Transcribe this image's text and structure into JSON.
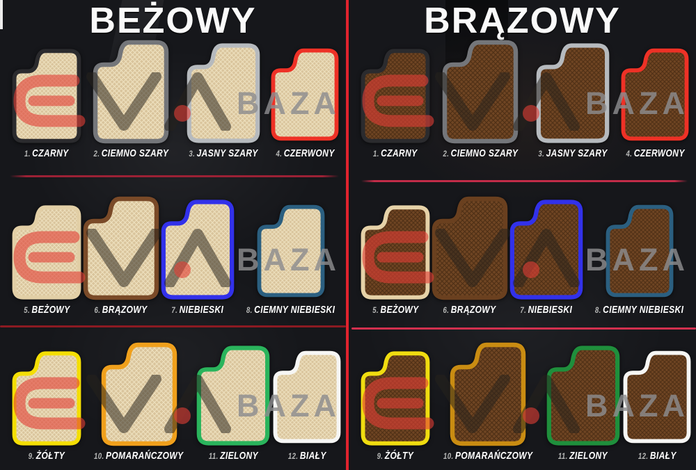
{
  "page": {
    "background": "#16171b",
    "edge_mark_color": "#ececec"
  },
  "dividers": {
    "vertical_color": "#e0232e",
    "left_horizontal_top_color": "#9c2135",
    "left_horizontal_bottom_color": "#8c1a22",
    "right_horizontal_top_color": "#c22c48",
    "right_horizontal_bottom_color": "#d2304e"
  },
  "watermark": {
    "logo_text": "EVA",
    "baza_text": "BAZA",
    "eva_red": "rgba(226,62,54,0.60)",
    "logo_dark": "rgba(38,34,28,0.52)",
    "baza_gray": "rgba(140,140,143,0.82)"
  },
  "panels": [
    {
      "id": "bezowy",
      "title": "BEŻOWY",
      "mat_fill": "#d9c49c",
      "mat_lattice": "#eee1bf",
      "items": [
        {
          "num": "1.",
          "label": "CZARNY",
          "border": "#2b2b2e"
        },
        {
          "num": "2.",
          "label": "CIEMNO SZARY",
          "border": "#74767a"
        },
        {
          "num": "3.",
          "label": "JASNY SZARY",
          "border": "#b6babe"
        },
        {
          "num": "4.",
          "label": "CZERWONY",
          "border": "#ee3126"
        },
        {
          "num": "5.",
          "label": "BEŻOWY",
          "border": "#e2cfa6"
        },
        {
          "num": "6.",
          "label": "BRĄZOWY",
          "border": "#7a4a28"
        },
        {
          "num": "7.",
          "label": "NIEBIESKI",
          "border": "#3231ea"
        },
        {
          "num": "8.",
          "label": "CIEMNY NIEBIESKI",
          "border": "#2b5f80"
        },
        {
          "num": "9.",
          "label": "ŻÓŁTY",
          "border": "#f4de04"
        },
        {
          "num": "10.",
          "label": "POMARAŃCZOWY",
          "border": "#f0a01c"
        },
        {
          "num": "11.",
          "label": "ZIELONY",
          "border": "#2ab45c"
        },
        {
          "num": "12.",
          "label": "BIAŁY",
          "border": "#f6f6f4"
        }
      ]
    },
    {
      "id": "brazowy",
      "title": "BRĄZOWY",
      "mat_fill": "#6f4523",
      "mat_lattice": "#4e2f15",
      "items": [
        {
          "num": "1.",
          "label": "CZARNY",
          "border": "#2b2b2e"
        },
        {
          "num": "2.",
          "label": "CIEMNO SZARY",
          "border": "#74767a"
        },
        {
          "num": "3.",
          "label": "JASNY SZARY",
          "border": "#b6babe"
        },
        {
          "num": "4.",
          "label": "CZERWONY",
          "border": "#ee3126"
        },
        {
          "num": "5.",
          "label": "BEŻOWY",
          "border": "#e6d2a8"
        },
        {
          "num": "6.",
          "label": "BRĄZOWY",
          "border": "#6a401f"
        },
        {
          "num": "7.",
          "label": "NIEBIESKI",
          "border": "#3231ea"
        },
        {
          "num": "8.",
          "label": "CIEMNY NIEBIESKI",
          "border": "#2b5f80"
        },
        {
          "num": "9.",
          "label": "ŻÓŁTY",
          "border": "#f0dc10"
        },
        {
          "num": "10.",
          "label": "POMARAŃCZOWY",
          "border": "#c98c12"
        },
        {
          "num": "11.",
          "label": "ZIELONY",
          "border": "#1f8f3c"
        },
        {
          "num": "12.",
          "label": "BIAŁY",
          "border": "#f6f6f4"
        }
      ]
    }
  ]
}
